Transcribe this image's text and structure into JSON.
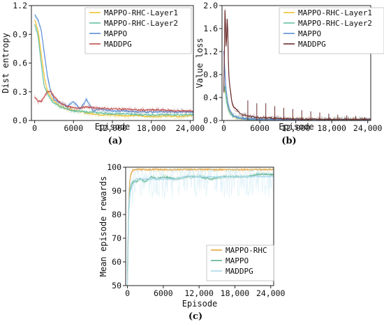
{
  "chart_data": [
    {
      "panel": "(a)",
      "type": "line",
      "xlabel": "Episode",
      "ylabel": "Dist entropy",
      "xlim": [
        -500,
        24500
      ],
      "ylim": [
        0,
        1.2
      ],
      "xticks": [
        0,
        6000,
        12000,
        18000,
        24000
      ],
      "xtick_labels": [
        "0",
        "6000",
        "12,000",
        "18,000",
        "24,000"
      ],
      "yticks": [
        0.0,
        0.3,
        0.6,
        0.9,
        1.2
      ],
      "ytick_labels": [
        "0.0",
        "0.3",
        "0.6",
        "0.9",
        "1.2"
      ],
      "legend": "top-right",
      "series": [
        {
          "name": "MAPPO-RHC-Layer1",
          "color": "#f2c12e",
          "x": [
            0,
            500,
            1000,
            1500,
            2000,
            2500,
            3000,
            4000,
            5000,
            6000,
            8000,
            10000,
            12000,
            14000,
            16000,
            18000,
            20000,
            22000,
            24000
          ],
          "y": [
            1.05,
            0.95,
            0.7,
            0.45,
            0.3,
            0.25,
            0.2,
            0.15,
            0.12,
            0.11,
            0.08,
            0.06,
            0.06,
            0.05,
            0.05,
            0.04,
            0.05,
            0.04,
            0.05
          ]
        },
        {
          "name": "MAPPO-RHC-Layer2",
          "color": "#66c2a5",
          "x": [
            0,
            500,
            1000,
            1500,
            2000,
            2500,
            3000,
            4000,
            5000,
            6000,
            8000,
            10000,
            12000,
            14000,
            16000,
            18000,
            20000,
            22000,
            24000
          ],
          "y": [
            1.0,
            0.9,
            0.6,
            0.35,
            0.28,
            0.22,
            0.18,
            0.14,
            0.12,
            0.1,
            0.09,
            0.08,
            0.07,
            0.07,
            0.06,
            0.06,
            0.06,
            0.06,
            0.06
          ]
        },
        {
          "name": "MAPPO",
          "color": "#5b8fd6",
          "x": [
            0,
            500,
            1000,
            1500,
            2000,
            2500,
            3000,
            4000,
            5000,
            6000,
            7000,
            8000,
            9000,
            10000,
            12000,
            14000,
            16000,
            18000,
            20000,
            22000,
            24000
          ],
          "y": [
            1.1,
            1.05,
            0.95,
            0.7,
            0.45,
            0.3,
            0.22,
            0.18,
            0.15,
            0.2,
            0.12,
            0.22,
            0.1,
            0.12,
            0.1,
            0.1,
            0.09,
            0.09,
            0.09,
            0.09,
            0.09
          ]
        },
        {
          "name": "MADDPG",
          "color": "#c0504d",
          "x": [
            0,
            500,
            1000,
            1500,
            2000,
            2500,
            3000,
            4000,
            5000,
            6000,
            8000,
            10000,
            12000,
            14000,
            16000,
            18000,
            20000,
            22000,
            24000
          ],
          "y": [
            0.25,
            0.2,
            0.2,
            0.25,
            0.3,
            0.3,
            0.25,
            0.18,
            0.15,
            0.13,
            0.14,
            0.13,
            0.12,
            0.12,
            0.11,
            0.11,
            0.11,
            0.1,
            0.1
          ]
        }
      ]
    },
    {
      "panel": "(b)",
      "type": "line",
      "xlabel": "Episode",
      "ylabel": "Value loss",
      "xlim": [
        -300,
        24500
      ],
      "ylim": [
        0,
        2.0
      ],
      "xticks": [
        0,
        6000,
        12000,
        18000,
        24000
      ],
      "xtick_labels": [
        "0",
        "6000",
        "12,000",
        "18,000",
        "24,000"
      ],
      "yticks": [
        0.0,
        0.4,
        0.8,
        1.2,
        1.6,
        2.0
      ],
      "ytick_labels": [
        "0.0",
        "0.4",
        "0.8",
        "1.2",
        "1.6",
        "2.0"
      ],
      "legend": "top-right",
      "series": [
        {
          "name": "MAPPO-RHC-Layer1",
          "color": "#f2c12e",
          "x": [
            0,
            200,
            400,
            700,
            1000,
            1500,
            2000,
            3000,
            4000,
            6000,
            12000,
            18000,
            24000
          ],
          "y": [
            0.6,
            0.5,
            0.4,
            0.25,
            0.15,
            0.08,
            0.05,
            0.03,
            0.02,
            0.01,
            0.01,
            0.01,
            0.01
          ]
        },
        {
          "name": "MAPPO-RHC-Layer2",
          "color": "#66c2a5",
          "x": [
            0,
            200,
            400,
            700,
            1000,
            1500,
            2000,
            3000,
            4000,
            6000,
            12000,
            18000,
            24000
          ],
          "y": [
            0.5,
            0.6,
            0.35,
            0.2,
            0.12,
            0.07,
            0.05,
            0.03,
            0.02,
            0.01,
            0.01,
            0.01,
            0.01
          ]
        },
        {
          "name": "MAPPO",
          "color": "#5b8fd6",
          "x": [
            0,
            200,
            400,
            700,
            1000,
            1500,
            2000,
            3000,
            4000,
            6000,
            12000,
            18000,
            24000
          ],
          "y": [
            1.2,
            0.8,
            0.5,
            0.3,
            0.18,
            0.1,
            0.06,
            0.04,
            0.03,
            0.02,
            0.01,
            0.01,
            0.01
          ]
        },
        {
          "name": "MADDPG",
          "color": "#6b2e2e",
          "x": [
            0,
            200,
            400,
            600,
            800,
            1000,
            1300,
            1600,
            2000,
            2500,
            3000,
            4000,
            5000,
            6000,
            7000,
            8000,
            9000,
            10000,
            11000,
            12000,
            14000,
            16000,
            18000,
            20000,
            22000,
            24000
          ],
          "y": [
            0.5,
            2.0,
            1.2,
            1.9,
            0.8,
            0.6,
            0.35,
            0.25,
            0.2,
            0.15,
            0.1,
            0.08,
            0.06,
            0.05,
            0.05,
            0.04,
            0.04,
            0.03,
            0.03,
            0.03,
            0.02,
            0.02,
            0.02,
            0.02,
            0.02,
            0.02
          ],
          "spikes_x": [
            4000,
            5500,
            7000,
            8500,
            10000,
            11500,
            13000,
            14500,
            16000,
            17500,
            19000,
            20500,
            22000,
            23500
          ],
          "spikes_y": [
            0.35,
            0.3,
            0.3,
            0.25,
            0.22,
            0.2,
            0.18,
            0.16,
            0.14,
            0.12,
            0.1,
            0.09,
            0.08,
            0.06
          ]
        }
      ]
    },
    {
      "panel": "(c)",
      "type": "line",
      "xlabel": "Episode",
      "ylabel": "Mean episode rewards",
      "xlim": [
        -300,
        24500
      ],
      "ylim": [
        50,
        100
      ],
      "xticks": [
        0,
        6000,
        12000,
        18000,
        24000
      ],
      "xtick_labels": [
        "0",
        "6000",
        "12,000",
        "18,000",
        "24,000"
      ],
      "yticks": [
        50,
        60,
        70,
        80,
        90,
        100
      ],
      "ytick_labels": [
        "50",
        "60",
        "70",
        "80",
        "90",
        "100"
      ],
      "legend": "bottom-right",
      "series": [
        {
          "name": "MAPPO-RHC",
          "color": "#e8a33d",
          "x": [
            0,
            100,
            200,
            400,
            700,
            1000,
            1500,
            2000,
            3000,
            4000,
            6000,
            9000,
            12000,
            15000,
            18000,
            21000,
            24000
          ],
          "y": [
            52,
            65,
            85,
            95,
            98,
            99,
            99,
            99,
            99,
            99,
            99,
            99,
            99,
            99,
            99,
            99,
            99
          ]
        },
        {
          "name": "MAPPO",
          "color": "#5bb08a",
          "x": [
            0,
            100,
            200,
            400,
            700,
            1000,
            1500,
            2000,
            3000,
            4000,
            5000,
            6000,
            8000,
            10000,
            12000,
            14000,
            16000,
            18000,
            20000,
            22000,
            24000
          ],
          "y": [
            55,
            70,
            82,
            90,
            93,
            94,
            94,
            95,
            94,
            96,
            95,
            96,
            95,
            96,
            96,
            95,
            96,
            96,
            96,
            97,
            97
          ]
        },
        {
          "name": "MADDPG",
          "color": "#a9d9ea",
          "x": [
            0,
            200,
            500,
            1000,
            1500,
            2000,
            3000,
            4000,
            5000,
            6000,
            8000,
            10000,
            12000,
            14000,
            16000,
            18000,
            20000,
            22000,
            24000
          ],
          "y": [
            50,
            85,
            90,
            93,
            95,
            95,
            95,
            95,
            95,
            95,
            95,
            96,
            96,
            96,
            96,
            96,
            96,
            96,
            96
          ]
        }
      ]
    }
  ]
}
